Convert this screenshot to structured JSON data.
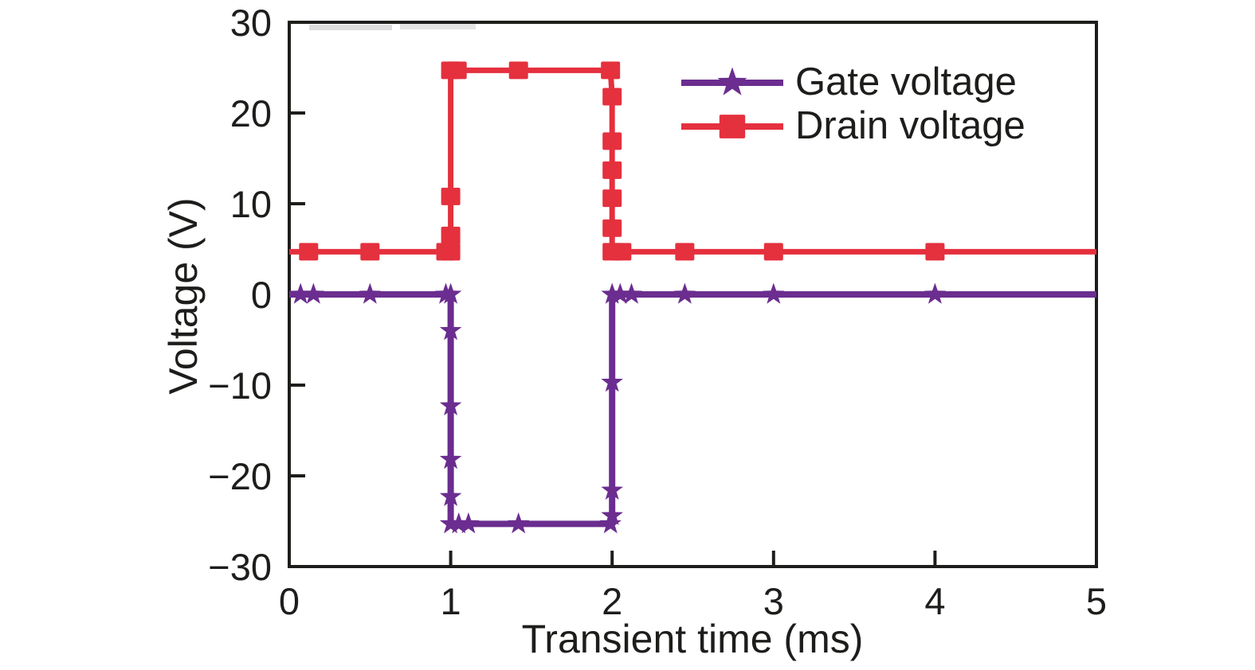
{
  "figure": {
    "background": "#ffffff",
    "ink_color": "#1d1d1b"
  },
  "chart_data": {
    "type": "line",
    "title": "",
    "xlabel": "Transient time (ms)",
    "ylabel": "Voltage (V)",
    "xlim": [
      0,
      5
    ],
    "ylim": [
      -30,
      30
    ],
    "xticks": [
      0,
      1,
      2,
      3,
      4,
      5
    ],
    "yticks": [
      30,
      20,
      10,
      0,
      -10,
      -20,
      -30
    ],
    "grid": false,
    "legend": {
      "position": "top-right",
      "entries": [
        "Gate voltage",
        "Drain voltage"
      ]
    },
    "series": [
      {
        "name": "Gate voltage",
        "color": "#6b2d8f",
        "marker": "star",
        "line_width": 8,
        "points": [
          [
            0,
            0
          ],
          [
            0.07,
            0
          ],
          [
            0.15,
            0
          ],
          [
            0.5,
            0
          ],
          [
            0.97,
            0
          ],
          [
            1,
            0
          ],
          [
            1,
            -4
          ],
          [
            1,
            -12.3
          ],
          [
            1,
            -18.2
          ],
          [
            1,
            -22.3
          ],
          [
            1,
            -25.3
          ],
          [
            1.05,
            -25.3
          ],
          [
            1.11,
            -25.3
          ],
          [
            1.42,
            -25.3
          ],
          [
            1.99,
            -25.3
          ],
          [
            2,
            -24.4
          ],
          [
            2,
            -21.6
          ],
          [
            2,
            -9.7
          ],
          [
            2,
            0
          ],
          [
            2.05,
            0
          ],
          [
            2.12,
            0
          ],
          [
            2.45,
            0
          ],
          [
            3,
            0
          ],
          [
            4,
            0
          ],
          [
            5,
            0
          ]
        ]
      },
      {
        "name": "Drain voltage",
        "color": "#e5303e",
        "marker": "square",
        "line_width": 7,
        "points": [
          [
            0,
            4.7
          ],
          [
            0.12,
            4.7
          ],
          [
            0.5,
            4.7
          ],
          [
            0.97,
            4.7
          ],
          [
            1,
            4.7
          ],
          [
            1,
            6.5
          ],
          [
            1,
            10.8
          ],
          [
            1,
            24.7
          ],
          [
            1.04,
            24.7
          ],
          [
            1.42,
            24.7
          ],
          [
            1.99,
            24.7
          ],
          [
            2,
            21.8
          ],
          [
            2,
            16.9
          ],
          [
            2,
            13.7
          ],
          [
            2,
            10.6
          ],
          [
            2,
            7.3
          ],
          [
            2,
            4.7
          ],
          [
            2.06,
            4.7
          ],
          [
            2.45,
            4.7
          ],
          [
            3,
            4.7
          ],
          [
            4,
            4.7
          ],
          [
            5,
            4.7
          ]
        ]
      }
    ]
  }
}
